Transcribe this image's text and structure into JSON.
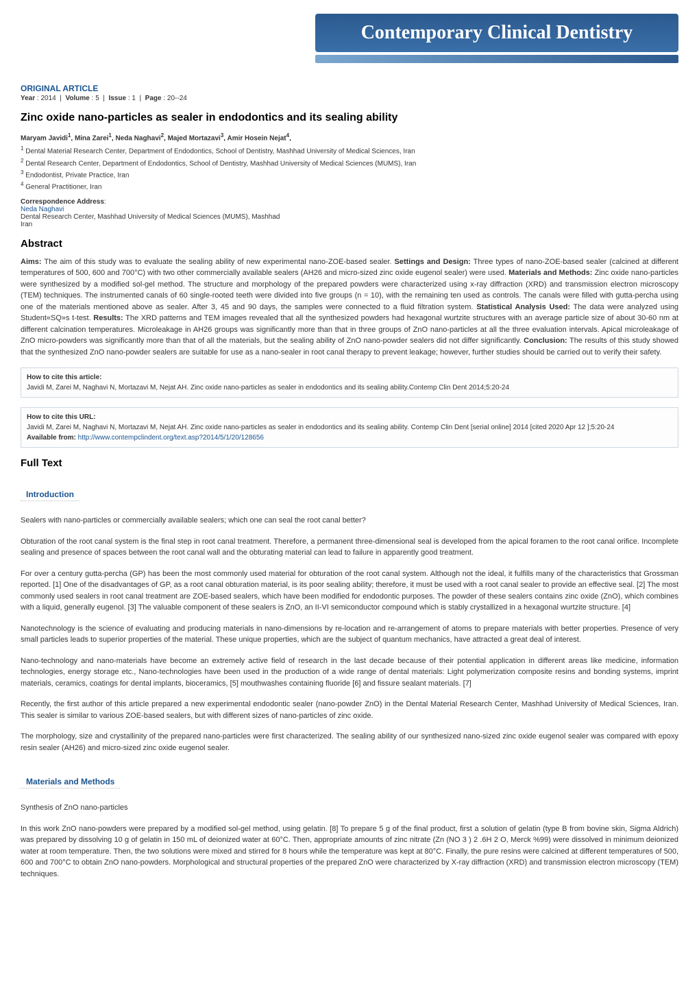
{
  "banner": {
    "title": "Contemporary Clinical Dentistry"
  },
  "article": {
    "type": "ORIGINAL ARTICLE",
    "meta": {
      "year_label": "Year",
      "year": "2014",
      "volume_label": "Volume",
      "volume": "5",
      "issue_label": "Issue",
      "issue": "1",
      "page_label": "Page",
      "page": "20--24"
    },
    "title": "Zinc oxide nano-particles as sealer in endodontics and its sealing ability",
    "authors": [
      {
        "name": "Maryam Javidi",
        "aff": "1"
      },
      {
        "name": "Mina Zarei",
        "aff": "1"
      },
      {
        "name": "Neda Naghavi",
        "aff": "2"
      },
      {
        "name": "Majed Mortazavi",
        "aff": "3"
      },
      {
        "name": "Amir Hosein Nejat",
        "aff": "4"
      }
    ],
    "affiliations": [
      {
        "num": "1",
        "text": "Dental Material Research Center, Department of Endodontics, School of Dentistry, Mashhad University of Medical Sciences, Iran"
      },
      {
        "num": "2",
        "text": "Dental Research Center, Department of Endodontics, School of Dentistry, Mashhad University of Medical Sciences (MUMS), Iran"
      },
      {
        "num": "3",
        "text": "Endodontist, Private Practice, Iran"
      },
      {
        "num": "4",
        "text": "General Practitioner, Iran"
      }
    ],
    "correspondence": {
      "label": "Correspondence Address",
      "name": "Neda Naghavi",
      "address": "Dental Research Center, Mashhad University of Medical Sciences (MUMS), Mashhad",
      "country": "Iran"
    }
  },
  "abstract": {
    "heading": "Abstract",
    "aims_label": "Aims:",
    "aims": "The aim of this study was to evaluate the sealing ability of new experimental nano-ZOE-based sealer.",
    "settings_label": "Settings and Design:",
    "settings": "Three types of nano-ZOE-based sealer (calcined at different temperatures of 500, 600 and 700°C) with two other commercially available sealers (AH26 and micro-sized zinc oxide eugenol sealer) were used.",
    "materials_label": "Materials and Methods:",
    "materials": "Zinc oxide nano-particles were synthesized by a modified sol-gel method. The structure and morphology of the prepared powders were characterized using x-ray diffraction (XRD) and transmission electron microscopy (TEM) techniques. The instrumented canals of 60 single-rooted teeth were divided into five groups (n = 10), with the remaining ten used as controls. The canals were filled with gutta-percha using one of the materials mentioned above as sealer. After 3, 45 and 90 days, the samples were connected to a fluid filtration system.",
    "stats_label": "Statistical Analysis Used:",
    "stats": "The data were analyzed using Student«SQ»s t-test.",
    "results_label": "Results:",
    "results": "The XRD patterns and TEM images revealed that all the synthesized powders had hexagonal wurtzite structures with an average particle size of about 30-60 nm at different calcination temperatures. Microleakage in AH26 groups was significantly more than that in three groups of ZnO nano-particles at all the three evaluation intervals. Apical microleakage of ZnO micro-powders was significantly more than that of all the materials, but the sealing ability of ZnO nano-powder sealers did not differ significantly.",
    "conclusion_label": "Conclusion:",
    "conclusion": "The results of this study showed that the synthesized ZnO nano-powder sealers are suitable for use as a nano-sealer in root canal therapy to prevent leakage; however, further studies should be carried out to verify their safety."
  },
  "citation": {
    "article_label": "How to cite this article:",
    "article_text": "Javidi M, Zarei M, Naghavi N, Mortazavi M, Nejat AH. Zinc oxide nano-particles as sealer in endodontics and its sealing ability.Contemp Clin Dent 2014;5:20-24",
    "url_label": "How to cite this URL:",
    "url_text": "Javidi M, Zarei M, Naghavi N, Mortazavi M, Nejat AH. Zinc oxide nano-particles as sealer in endodontics and its sealing ability. Contemp Clin Dent [serial online] 2014 [cited 2020 Apr 12 ];5:20-24",
    "available_label": "Available from:",
    "url": "http://www.contempclindent.org/text.asp?2014/5/1/20/128656"
  },
  "fulltext": {
    "heading": "Full Text",
    "intro_heading": "Introduction",
    "p1": "Sealers with nano-particles or commercially available sealers; which one can seal the root canal better?",
    "p2": "Obturation of the root canal system is the final step in root canal treatment. Therefore, a permanent three-dimensional seal is developed from the apical foramen to the root canal orifice. Incomplete sealing and presence of spaces between the root canal wall and the obturating material can lead to failure in apparently good treatment.",
    "p3": "For over a century gutta-percha (GP) has been the most commonly used material for obturation of the root canal system. Although not the ideal, it fulfills many of the characteristics that Grossman reported. [1] One of the disadvantages of GP, as a root canal obturation material, is its poor sealing ability; therefore, it must be used with a root canal sealer to provide an effective seal. [2] The most commonly used sealers in root canal treatment are ZOE-based sealers, which have been modified for endodontic purposes. The powder of these sealers contains zinc oxide (ZnO), which combines with a liquid, generally eugenol. [3] The valuable component of these sealers is ZnO, an II-VI semiconductor compound which is stably crystallized in a hexagonal wurtzite structure. [4]",
    "p4": "Nanotechnology is the science of evaluating and producing materials in nano-dimensions by re-location and re-arrangement of atoms to prepare materials with better properties. Presence of very small particles leads to superior properties of the material. These unique properties, which are the subject of quantum mechanics, have attracted a great deal of interest.",
    "p5": "Nano-technology and nano-materials have become an extremely active field of research in the last decade because of their potential application in different areas like medicine, information technologies, energy storage etc., Nano-technologies have been used in the production of a wide range of dental materials: Light polymerization composite resins and bonding systems, imprint materials, ceramics, coatings for dental implants, bioceramics, [5] mouthwashes containing fluoride [6] and fissure sealant materials. [7]",
    "p6": "Recently, the first author of this article prepared a new experimental endodontic sealer (nano-powder ZnO) in the Dental Material Research Center, Mashhad University of Medical Sciences, Iran. This sealer is similar to various ZOE-based sealers, but with different sizes of nano-particles of zinc oxide.",
    "p7": "The morphology, size and crystallinity of the prepared nano-particles were first characterized. The sealing ability of our synthesized nano-sized zinc oxide eugenol sealer was compared with epoxy resin sealer (AH26) and micro-sized zinc oxide eugenol sealer.",
    "methods_heading": "Materials and Methods",
    "synth_heading": "Synthesis of ZnO nano-particles",
    "p8": "In this work ZnO nano-powders were prepared by a modified sol-gel method, using gelatin. [8] To prepare 5 g of the final product, first a solution of gelatin (type B from bovine skin, Sigma Aldrich) was prepared by dissolving 10 g of gelatin in 150 mL of deionized water at 60°C. Then, appropriate amounts of zinc nitrate (Zn (NO 3 ) 2 .6H 2 O, Merck %99) were dissolved in minimum deionized water at room temperature. Then, the two solutions were mixed and stirred for 8 hours while the temperature was kept at 80°C. Finally, the pure resins were calcined at different temperatures of 500, 600 and 700°C to obtain ZnO nano-powders. Morphological and structural properties of the prepared ZnO were characterized by X-ray diffraction (XRD) and transmission electron microscopy (TEM) techniques."
  }
}
